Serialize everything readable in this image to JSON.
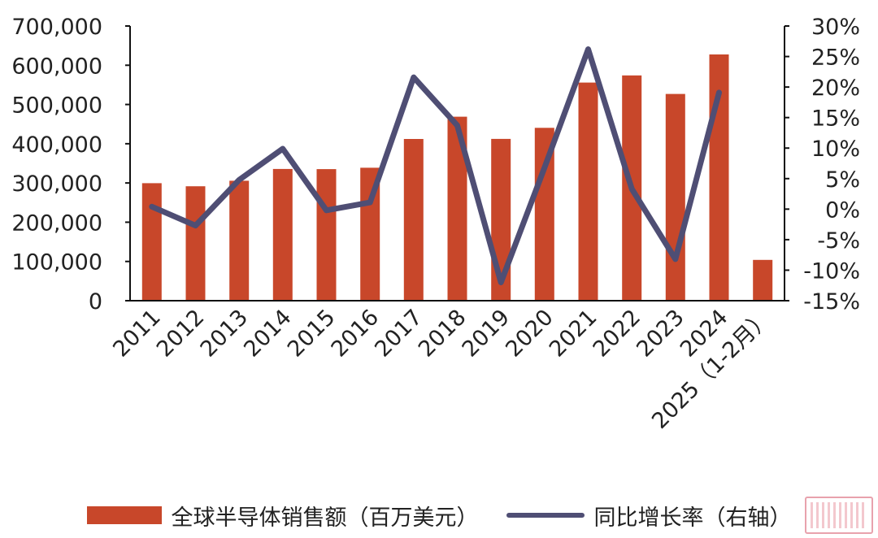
{
  "colors": {
    "bar": "#c8472a",
    "line": "#4f4e74",
    "axis": "#111111",
    "text": "#222222",
    "watermark": "#e8a2ad"
  },
  "chart_data": {
    "type": "bar",
    "categories": [
      "2011",
      "2012",
      "2013",
      "2014",
      "2015",
      "2016",
      "2017",
      "2018",
      "2019",
      "2020",
      "2021",
      "2022",
      "2023",
      "2024",
      "2025（1-2月）"
    ],
    "series": [
      {
        "name": "全球半导体销售额（百万美元）",
        "type": "bar",
        "axis": "left",
        "values": [
          299500,
          291600,
          305600,
          335800,
          335200,
          338900,
          412200,
          468800,
          412300,
          440400,
          555900,
          574100,
          526900,
          627600,
          104000
        ]
      },
      {
        "name": "同比增长率（右轴）",
        "type": "line",
        "axis": "right",
        "values": [
          0.4,
          -2.7,
          4.8,
          9.9,
          -0.2,
          1.1,
          21.6,
          13.7,
          -12.0,
          6.8,
          26.2,
          3.3,
          -8.2,
          19.1,
          null
        ]
      }
    ],
    "y_left": {
      "range": [
        0,
        700000
      ],
      "ticks": [
        "0",
        "100,000",
        "200,000",
        "300,000",
        "400,000",
        "500,000",
        "600,000",
        "700,000"
      ]
    },
    "y_right": {
      "range": [
        -15,
        30
      ],
      "ticks": [
        "-15%",
        "-10%",
        "-5%",
        "0%",
        "5%",
        "10%",
        "15%",
        "20%",
        "25%",
        "30%"
      ]
    },
    "grid": false,
    "legend_position": "bottom"
  },
  "legend": {
    "bar_label": "全球半导体销售额（百万美元）",
    "line_label": "同比增长率（右轴）",
    "bar_icon": "bar-swatch",
    "line_icon": "line-swatch"
  },
  "watermark": {
    "icon": "watermark-stamp"
  }
}
